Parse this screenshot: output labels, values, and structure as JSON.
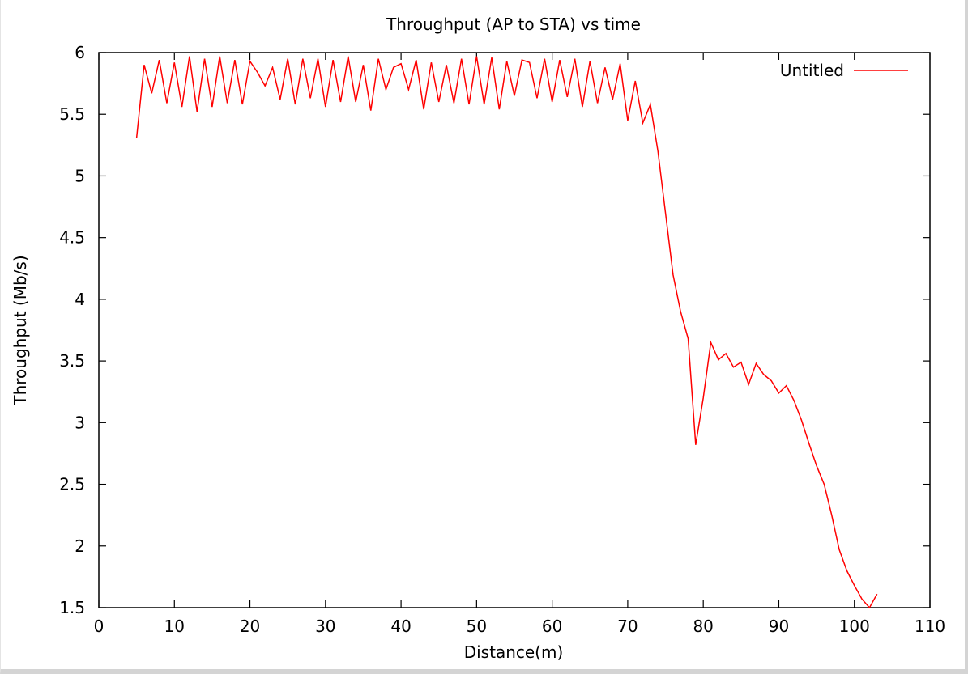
{
  "chart_data": {
    "type": "line",
    "title": "Throughput (AP to STA) vs time",
    "xlabel": "Distance(m)",
    "ylabel": "Throughput (Mb/s)",
    "xlim": [
      0,
      110
    ],
    "ylim": [
      1.5,
      6
    ],
    "xticks": [
      0,
      10,
      20,
      30,
      40,
      50,
      60,
      70,
      80,
      90,
      100,
      110
    ],
    "yticks": [
      1.5,
      2,
      2.5,
      3,
      3.5,
      4,
      4.5,
      5,
      5.5,
      6
    ],
    "grid": false,
    "legend_position": "top-right",
    "series": [
      {
        "name": "Untitled",
        "color": "#ff0000",
        "x": [
          5,
          6,
          7,
          8,
          9,
          10,
          11,
          12,
          13,
          14,
          15,
          16,
          17,
          18,
          19,
          20,
          21,
          22,
          23,
          24,
          25,
          26,
          27,
          28,
          29,
          30,
          31,
          32,
          33,
          34,
          35,
          36,
          37,
          38,
          39,
          40,
          41,
          42,
          43,
          44,
          45,
          46,
          47,
          48,
          49,
          50,
          51,
          52,
          53,
          54,
          55,
          56,
          57,
          58,
          59,
          60,
          61,
          62,
          63,
          64,
          65,
          66,
          67,
          68,
          69,
          70,
          71,
          72,
          73,
          74,
          75,
          76,
          77,
          78,
          79,
          80,
          81,
          82,
          83,
          84,
          85,
          86,
          87,
          88,
          89,
          90,
          91,
          92,
          93,
          94,
          95,
          96,
          97,
          98,
          99,
          100,
          101,
          102,
          103
        ],
        "y": [
          5.31,
          5.9,
          5.67,
          5.94,
          5.59,
          5.92,
          5.56,
          5.97,
          5.52,
          5.95,
          5.56,
          5.97,
          5.59,
          5.94,
          5.58,
          5.93,
          5.84,
          5.73,
          5.88,
          5.62,
          5.95,
          5.58,
          5.95,
          5.63,
          5.95,
          5.56,
          5.94,
          5.6,
          5.97,
          5.6,
          5.9,
          5.53,
          5.95,
          5.7,
          5.88,
          5.91,
          5.7,
          5.94,
          5.54,
          5.92,
          5.6,
          5.9,
          5.59,
          5.95,
          5.58,
          5.97,
          5.58,
          5.96,
          5.54,
          5.93,
          5.65,
          5.94,
          5.92,
          5.63,
          5.95,
          5.6,
          5.94,
          5.64,
          5.95,
          5.56,
          5.93,
          5.59,
          5.88,
          5.62,
          5.91,
          5.45,
          5.77,
          5.43,
          5.58,
          5.2,
          4.7,
          4.2,
          3.9,
          3.68,
          2.82,
          3.2,
          3.65,
          3.51,
          3.56,
          3.45,
          3.49,
          3.31,
          3.48,
          3.39,
          3.34,
          3.24,
          3.3,
          3.18,
          3.02,
          2.83,
          2.65,
          2.5,
          2.25,
          1.97,
          1.8,
          1.68,
          1.57,
          1.5,
          1.61
        ]
      }
    ]
  }
}
